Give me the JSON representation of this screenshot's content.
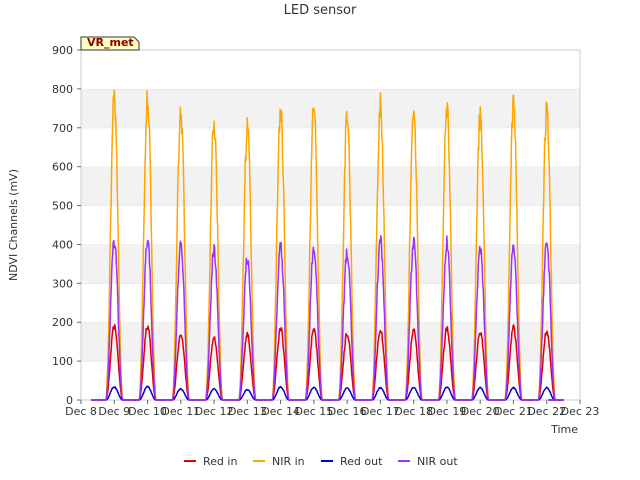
{
  "chart_data": {
    "type": "line",
    "title": "LED sensor",
    "xlabel": "Time",
    "ylabel": "NDVI Channels (mV)",
    "ylim": [
      0,
      900
    ],
    "yticks": [
      0,
      100,
      200,
      300,
      400,
      500,
      600,
      700,
      800,
      900
    ],
    "xlim": [
      "Dec 8",
      "Dec 23"
    ],
    "xticks": [
      "Dec 8",
      "Dec 9",
      "Dec 10",
      "Dec 11",
      "Dec 12",
      "Dec 13",
      "Dec 14",
      "Dec 15",
      "Dec 16",
      "Dec 17",
      "Dec 18",
      "Dec 19",
      "Dec 20",
      "Dec 21",
      "Dec 22",
      "Dec 23"
    ],
    "grid": "horizontal bands",
    "legend_position": "bottom",
    "site_tag": "VR_met",
    "series": [
      {
        "name": "Red in",
        "color": "#dd0000",
        "peaks": [
          {
            "day": "Dec 9",
            "value": 197
          },
          {
            "day": "Dec 10",
            "value": 200
          },
          {
            "day": "Dec 11",
            "value": 180
          },
          {
            "day": "Dec 12",
            "value": 168
          },
          {
            "day": "Dec 13",
            "value": 175
          },
          {
            "day": "Dec 14",
            "value": 193
          },
          {
            "day": "Dec 15",
            "value": 190
          },
          {
            "day": "Dec 16",
            "value": 180
          },
          {
            "day": "Dec 17",
            "value": 192
          },
          {
            "day": "Dec 18",
            "value": 188
          },
          {
            "day": "Dec 19",
            "value": 192
          },
          {
            "day": "Dec 20",
            "value": 183
          },
          {
            "day": "Dec 21",
            "value": 195
          },
          {
            "day": "Dec 22",
            "value": 188
          }
        ]
      },
      {
        "name": "NIR in",
        "color": "#ffa500",
        "peaks": [
          {
            "day": "Dec 9",
            "value": 810
          },
          {
            "day": "Dec 10",
            "value": 820
          },
          {
            "day": "Dec 11",
            "value": 778
          },
          {
            "day": "Dec 12",
            "value": 745
          },
          {
            "day": "Dec 13",
            "value": 728
          },
          {
            "day": "Dec 14",
            "value": 785
          },
          {
            "day": "Dec 15",
            "value": 782
          },
          {
            "day": "Dec 16",
            "value": 760
          },
          {
            "day": "Dec 17",
            "value": 792
          },
          {
            "day": "Dec 18",
            "value": 787
          },
          {
            "day": "Dec 19",
            "value": 792
          },
          {
            "day": "Dec 20",
            "value": 765
          },
          {
            "day": "Dec 21",
            "value": 790
          },
          {
            "day": "Dec 22",
            "value": 785
          }
        ]
      },
      {
        "name": "Red out",
        "color": "#0000cc",
        "peaks": [
          {
            "day": "Dec 9",
            "value": 35
          },
          {
            "day": "Dec 10",
            "value": 36
          },
          {
            "day": "Dec 11",
            "value": 30
          },
          {
            "day": "Dec 12",
            "value": 30
          },
          {
            "day": "Dec 13",
            "value": 28
          },
          {
            "day": "Dec 14",
            "value": 35
          },
          {
            "day": "Dec 15",
            "value": 34
          },
          {
            "day": "Dec 16",
            "value": 32
          },
          {
            "day": "Dec 17",
            "value": 33
          },
          {
            "day": "Dec 18",
            "value": 34
          },
          {
            "day": "Dec 19",
            "value": 34
          },
          {
            "day": "Dec 20",
            "value": 33
          },
          {
            "day": "Dec 21",
            "value": 33
          },
          {
            "day": "Dec 22",
            "value": 33
          }
        ]
      },
      {
        "name": "NIR out",
        "color": "#9b30ff",
        "peaks": [
          {
            "day": "Dec 9",
            "value": 427
          },
          {
            "day": "Dec 10",
            "value": 430
          },
          {
            "day": "Dec 11",
            "value": 418
          },
          {
            "day": "Dec 12",
            "value": 405
          },
          {
            "day": "Dec 13",
            "value": 380
          },
          {
            "day": "Dec 14",
            "value": 412
          },
          {
            "day": "Dec 15",
            "value": 415
          },
          {
            "day": "Dec 16",
            "value": 400
          },
          {
            "day": "Dec 17",
            "value": 430
          },
          {
            "day": "Dec 18",
            "value": 422
          },
          {
            "day": "Dec 19",
            "value": 422
          },
          {
            "day": "Dec 20",
            "value": 415
          },
          {
            "day": "Dec 21",
            "value": 410
          },
          {
            "day": "Dec 22",
            "value": 425
          }
        ]
      }
    ]
  }
}
